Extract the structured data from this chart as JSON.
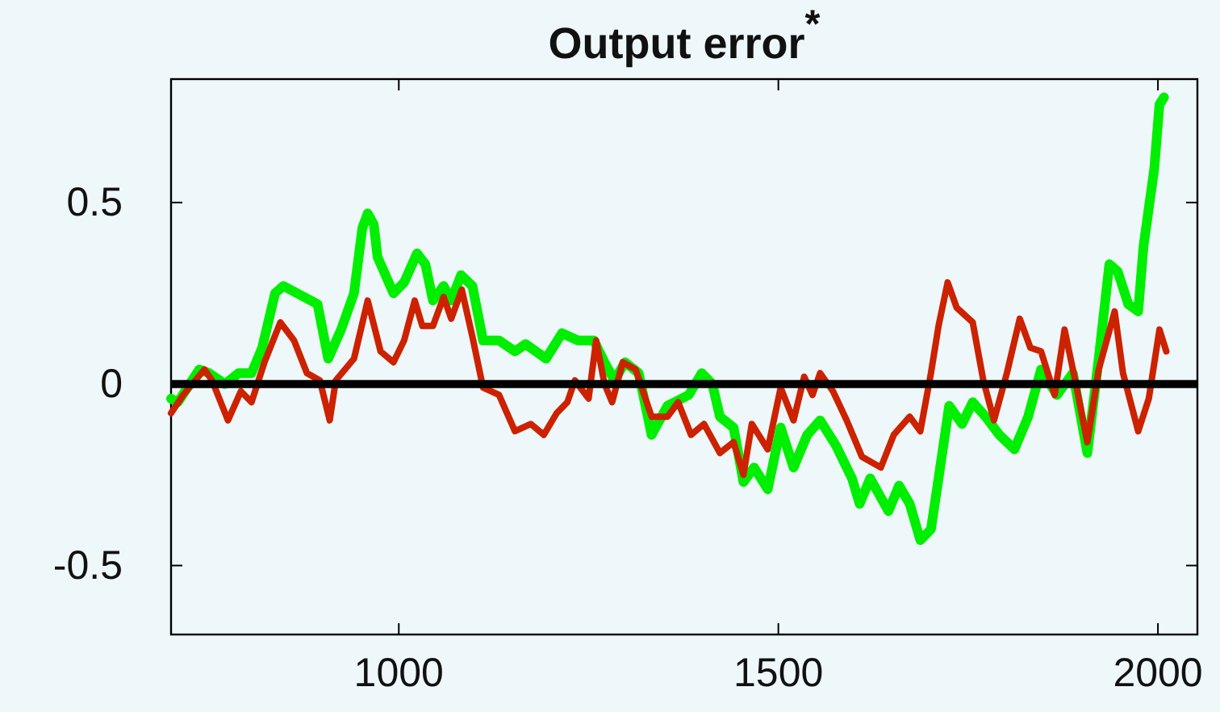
{
  "chart_data": {
    "type": "line",
    "title": "Output error$^{*}$",
    "xlim": [
      700,
      2052
    ],
    "ylim": [
      -0.69,
      0.84
    ],
    "xticks": [
      1000,
      1500,
      2000
    ],
    "yticks": [
      -0.5,
      0,
      0.5
    ],
    "grid": false,
    "line_style": "solid",
    "marker": "none",
    "ref_lines": [
      {
        "axis": "y",
        "value": 0,
        "color": "#000000"
      }
    ],
    "series": [
      {
        "color": "#00ee00",
        "x": [
          700,
          709,
          737,
          750,
          771,
          789,
          806,
          820,
          837,
          848,
          875,
          893,
          907,
          924,
          941,
          952,
          959,
          967,
          972,
          993,
          1007,
          1024,
          1035,
          1045,
          1059,
          1069,
          1082,
          1097,
          1111,
          1132,
          1153,
          1167,
          1194,
          1215,
          1236,
          1257,
          1271,
          1284,
          1298,
          1316,
          1333,
          1354,
          1382,
          1399,
          1413,
          1423,
          1441,
          1454,
          1468,
          1486,
          1503,
          1520,
          1538,
          1555,
          1576,
          1597,
          1607,
          1621,
          1645,
          1659,
          1673,
          1687,
          1701,
          1711,
          1725,
          1742,
          1756,
          1773,
          1791,
          1811,
          1829,
          1846,
          1867,
          1888,
          1907,
          1922,
          1936,
          1947,
          1961,
          1974,
          1981,
          1995,
          2002,
          2008
        ],
        "values": [
          -0.04,
          -0.05,
          0.04,
          0.03,
          0.0,
          0.03,
          0.03,
          0.1,
          0.25,
          0.27,
          0.24,
          0.22,
          0.07,
          0.15,
          0.25,
          0.43,
          0.47,
          0.44,
          0.35,
          0.25,
          0.28,
          0.36,
          0.33,
          0.23,
          0.27,
          0.23,
          0.3,
          0.27,
          0.12,
          0.12,
          0.09,
          0.11,
          0.07,
          0.14,
          0.12,
          0.12,
          0.06,
          0.01,
          0.06,
          0.03,
          -0.14,
          -0.06,
          -0.03,
          0.03,
          0.0,
          -0.09,
          -0.12,
          -0.27,
          -0.23,
          -0.29,
          -0.12,
          -0.23,
          -0.14,
          -0.1,
          -0.17,
          -0.26,
          -0.33,
          -0.26,
          -0.35,
          -0.28,
          -0.33,
          -0.43,
          -0.4,
          -0.26,
          -0.06,
          -0.11,
          -0.05,
          -0.09,
          -0.14,
          -0.18,
          -0.09,
          0.04,
          -0.03,
          0.03,
          -0.19,
          0.07,
          0.33,
          0.31,
          0.22,
          0.2,
          0.38,
          0.59,
          0.77,
          0.79
        ]
      },
      {
        "color": "#cc2200",
        "x": [
          700,
          716,
          744,
          754,
          775,
          792,
          806,
          823,
          844,
          862,
          879,
          896,
          909,
          917,
          941,
          959,
          976,
          993,
          1007,
          1021,
          1031,
          1045,
          1059,
          1069,
          1083,
          1097,
          1111,
          1132,
          1153,
          1174,
          1191,
          1208,
          1222,
          1232,
          1250,
          1260,
          1271,
          1281,
          1295,
          1312,
          1333,
          1354,
          1368,
          1385,
          1402,
          1423,
          1441,
          1454,
          1465,
          1486,
          1503,
          1520,
          1534,
          1545,
          1555,
          1572,
          1590,
          1610,
          1635,
          1652,
          1673,
          1687,
          1701,
          1711,
          1723,
          1735,
          1756,
          1770,
          1784,
          1801,
          1818,
          1832,
          1846,
          1864,
          1877,
          1891,
          1907,
          1922,
          1943,
          1954,
          1974,
          1988,
          2002,
          2011
        ],
        "values": [
          -0.08,
          -0.03,
          0.04,
          0.01,
          -0.1,
          -0.02,
          -0.05,
          0.06,
          0.17,
          0.12,
          0.03,
          0.01,
          -0.1,
          0.01,
          0.07,
          0.23,
          0.09,
          0.06,
          0.12,
          0.23,
          0.16,
          0.16,
          0.24,
          0.18,
          0.26,
          0.13,
          -0.01,
          -0.03,
          -0.13,
          -0.11,
          -0.14,
          -0.08,
          -0.05,
          0.01,
          -0.04,
          0.12,
          0.0,
          -0.05,
          0.06,
          0.04,
          -0.09,
          -0.09,
          -0.05,
          -0.14,
          -0.11,
          -0.19,
          -0.16,
          -0.25,
          -0.11,
          -0.18,
          -0.01,
          -0.1,
          0.02,
          -0.03,
          0.03,
          -0.02,
          -0.1,
          -0.2,
          -0.23,
          -0.14,
          -0.09,
          -0.13,
          0.03,
          0.16,
          0.28,
          0.21,
          0.17,
          0.01,
          -0.1,
          0.03,
          0.18,
          0.1,
          0.09,
          -0.03,
          0.15,
          0.01,
          -0.16,
          0.04,
          0.2,
          0.03,
          -0.13,
          -0.04,
          0.15,
          0.09
        ]
      }
    ]
  }
}
